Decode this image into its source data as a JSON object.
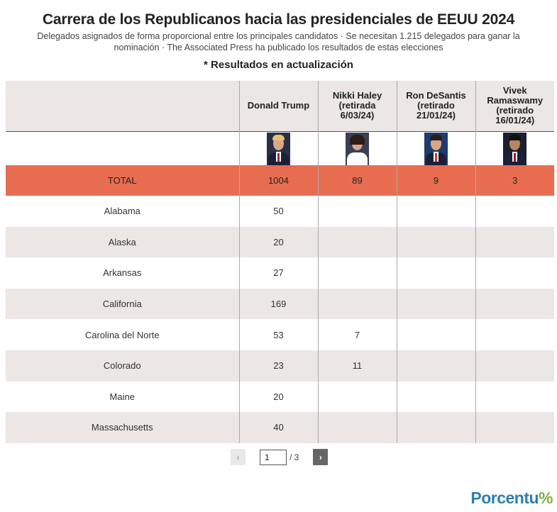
{
  "title": "Carrera de los Republicanos hacia las presidenciales de EEUU 2024",
  "subtitle": "Delegados asignados de forma proporcional entre los principales candidatos · Se necesitan 1.215 delegados para ganar la nominación · The Associated Press ha publicado los resultados de estas elecciones",
  "note": "* Resultados en actualización",
  "chart_data": {
    "type": "table",
    "columns": [
      "",
      "Donald Trump",
      "Nikki Haley (retirada 6/03/24)",
      "Ron DeSantis (retirado 21/01/24)",
      "Vivek Ramaswamy (retirado 16/01/24)"
    ],
    "total": {
      "label": "TOTAL",
      "values": [
        "1004",
        "89",
        "9",
        "3"
      ]
    },
    "rows": [
      {
        "state": "Alabama",
        "values": [
          "50",
          "",
          "",
          ""
        ]
      },
      {
        "state": "Alaska",
        "values": [
          "20",
          "",
          "",
          ""
        ]
      },
      {
        "state": "Arkansas",
        "values": [
          "27",
          "",
          "",
          ""
        ]
      },
      {
        "state": "California",
        "values": [
          "169",
          "",
          "",
          ""
        ]
      },
      {
        "state": "Carolina del Norte",
        "values": [
          "53",
          "7",
          "",
          ""
        ]
      },
      {
        "state": "Colorado",
        "values": [
          "23",
          "11",
          "",
          ""
        ]
      },
      {
        "state": "Maine",
        "values": [
          "20",
          "",
          "",
          ""
        ]
      },
      {
        "state": "Massachusetts",
        "values": [
          "40",
          "",
          "",
          ""
        ]
      }
    ]
  },
  "colors": {
    "total_row": "#e86d50",
    "alt_row": "#ece6e4"
  },
  "pagination": {
    "prev_label": "‹",
    "next_label": "›",
    "current_page": "1",
    "total_label": "/ 3"
  },
  "logo": {
    "text": "Porcentu",
    "mark": "%"
  }
}
